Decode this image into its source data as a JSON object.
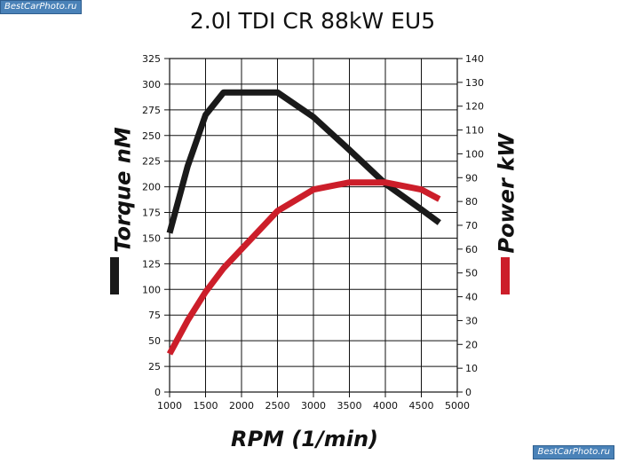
{
  "watermark": {
    "top_text": "BestCarPhoto.ru",
    "bottom_text": "BestCarPhoto.ru"
  },
  "chart_data": {
    "type": "line",
    "title": "2.0l TDI CR 88kW EU5",
    "xlabel": "RPM (1/min)",
    "ylabel_left": "Torque nM",
    "ylabel_right": "Power kW",
    "xlim": [
      1000,
      5000
    ],
    "ylim_left": [
      0,
      325
    ],
    "ylim_right": [
      0,
      140
    ],
    "x_ticks": [
      1000,
      1500,
      2000,
      2500,
      3000,
      3500,
      4000,
      4500,
      5000
    ],
    "y_left_ticks": [
      0,
      25,
      50,
      75,
      100,
      125,
      150,
      175,
      200,
      225,
      250,
      275,
      300,
      325
    ],
    "y_right_ticks": [
      0,
      10,
      20,
      30,
      40,
      50,
      60,
      70,
      80,
      90,
      100,
      110,
      120,
      130,
      140
    ],
    "grid": true,
    "series": [
      {
        "name": "Torque",
        "axis": "left",
        "color": "#1a1a1a",
        "x": [
          1000,
          1250,
          1500,
          1750,
          2000,
          2500,
          3000,
          3500,
          4000,
          4500,
          4750
        ],
        "values": [
          155,
          220,
          270,
          292,
          292,
          292,
          268,
          236,
          203,
          178,
          165
        ]
      },
      {
        "name": "Power",
        "axis": "right",
        "color": "#cc1e2a",
        "x": [
          1000,
          1250,
          1500,
          1750,
          2000,
          2500,
          3000,
          3500,
          4000,
          4500,
          4750
        ],
        "values": [
          16,
          30,
          42,
          52,
          60,
          76,
          85,
          88,
          88,
          85,
          81
        ]
      }
    ]
  }
}
